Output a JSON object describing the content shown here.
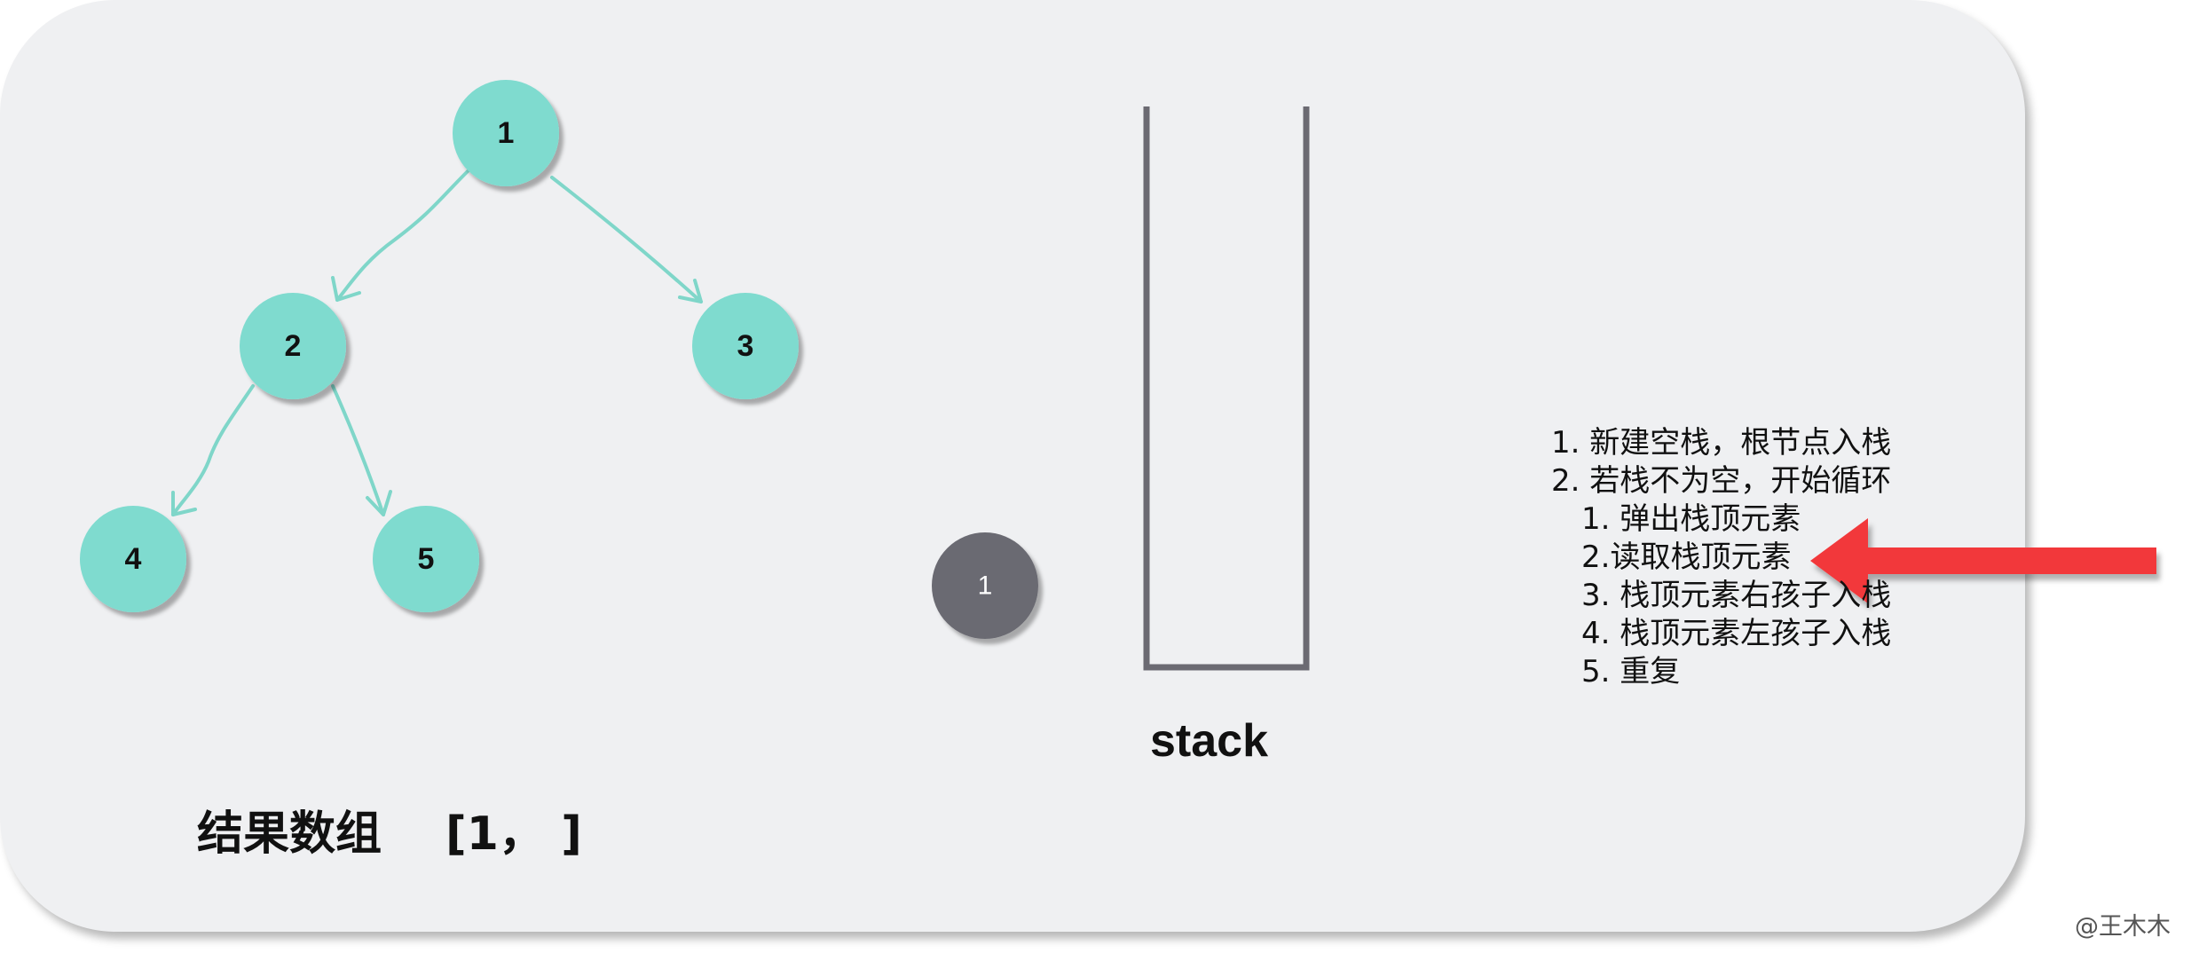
{
  "tree": {
    "nodes": [
      {
        "id": "1",
        "label": "1"
      },
      {
        "id": "2",
        "label": "2"
      },
      {
        "id": "3",
        "label": "3"
      },
      {
        "id": "4",
        "label": "4"
      },
      {
        "id": "5",
        "label": "5"
      }
    ],
    "edges": [
      {
        "from": "1",
        "to": "2"
      },
      {
        "from": "1",
        "to": "3"
      },
      {
        "from": "2",
        "to": "4"
      },
      {
        "from": "2",
        "to": "5"
      }
    ],
    "node_color": "#7fdbcf",
    "edge_color": "#7fd6c9"
  },
  "popped": {
    "label": "1",
    "color": "#6b6a72"
  },
  "stack": {
    "label": "stack",
    "color": "#6b6a72"
  },
  "result": {
    "title": "结果数组",
    "value": "[1， ]"
  },
  "steps": [
    {
      "text": "1. 新建空栈，根节点入栈",
      "level": 0
    },
    {
      "text": "2. 若栈不为空，开始循环",
      "level": 0
    },
    {
      "text": "1. 弹出栈顶元素",
      "level": 1
    },
    {
      "text": "2.读取栈顶元素",
      "level": 1
    },
    {
      "text": "3. 栈顶元素右孩子入栈",
      "level": 1
    },
    {
      "text": "4. 栈顶元素左孩子入栈",
      "level": 1
    },
    {
      "text": "5. 重复",
      "level": 1
    }
  ],
  "pointer_arrow": {
    "color": "#f2383a",
    "points_to_step": 3
  },
  "watermark": "@王木木"
}
